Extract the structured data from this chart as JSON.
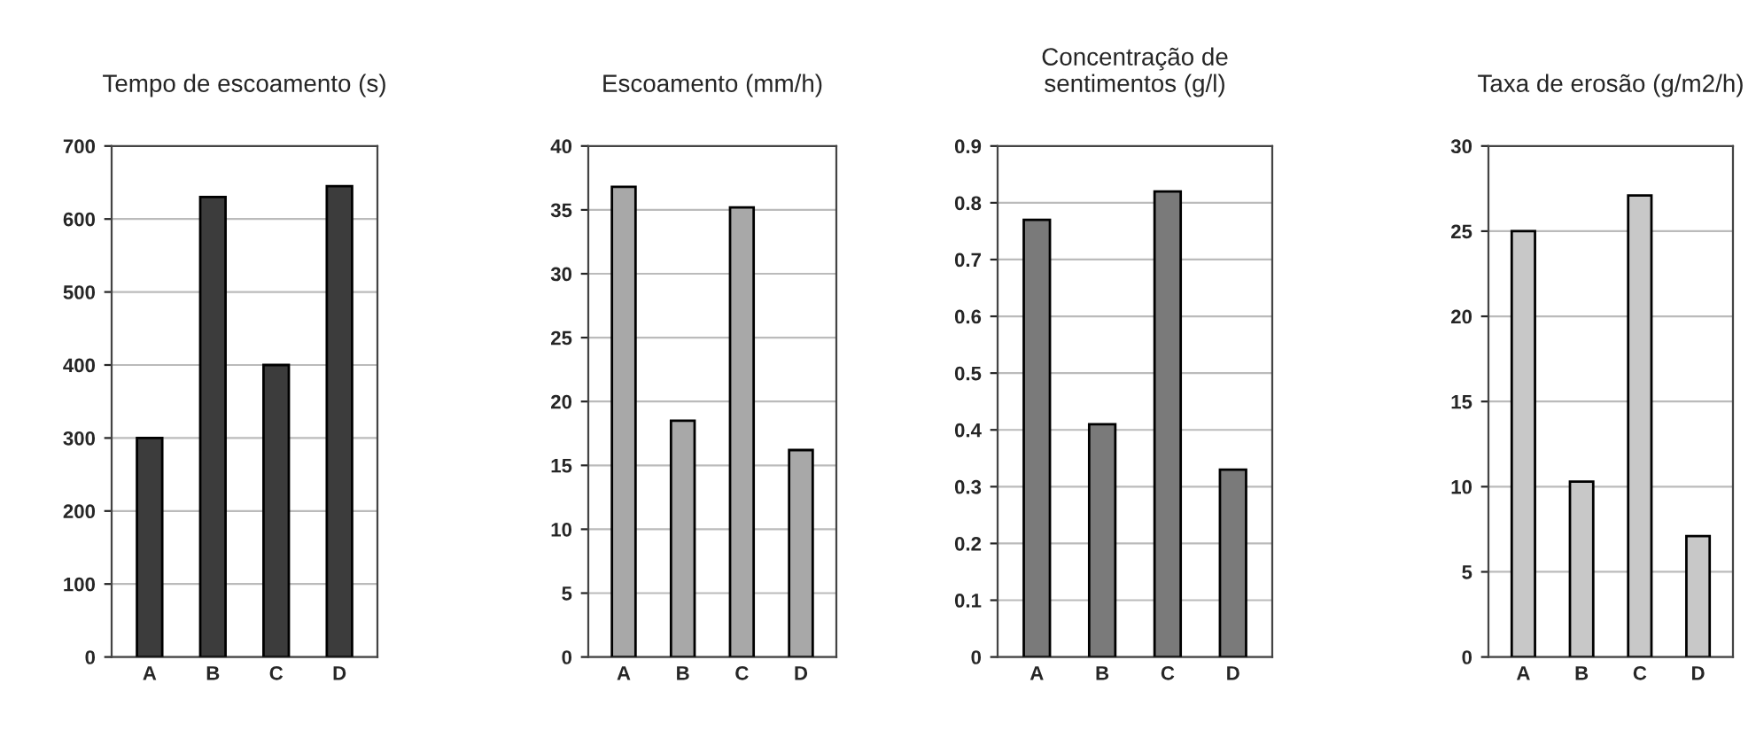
{
  "chart_data": [
    {
      "type": "bar",
      "title": "Tempo de escoamento (s)",
      "categories": [
        "A",
        "B",
        "C",
        "D"
      ],
      "values": [
        300,
        630,
        400,
        645
      ],
      "color": "#3c3c3c",
      "ylim": [
        0,
        700
      ],
      "yticks": [
        0,
        100,
        200,
        300,
        400,
        500,
        600,
        700
      ],
      "grid": "y"
    },
    {
      "type": "bar",
      "title": "Escoamento (mm/h)",
      "categories": [
        "A",
        "B",
        "C",
        "D"
      ],
      "values": [
        36.8,
        18.5,
        35.2,
        16.2
      ],
      "color": "#a8a8a8",
      "ylim": [
        0,
        40
      ],
      "yticks": [
        0,
        5,
        10,
        15,
        20,
        25,
        30,
        35,
        40
      ],
      "grid": "y"
    },
    {
      "type": "bar",
      "title": "Concentração de\nsentimentos (g/l)",
      "categories": [
        "A",
        "B",
        "C",
        "D"
      ],
      "values": [
        0.77,
        0.41,
        0.82,
        0.33
      ],
      "color": "#7a7a7a",
      "ylim": [
        0,
        0.9
      ],
      "yticks": [
        0,
        0.1,
        0.2,
        0.3,
        0.4,
        0.5,
        0.6,
        0.7,
        0.8,
        0.9
      ],
      "grid": "y"
    },
    {
      "type": "bar",
      "title": "Taxa de erosão (g/m2/h)",
      "categories": [
        "A",
        "B",
        "C",
        "D"
      ],
      "values": [
        25,
        10.3,
        27.1,
        7.1
      ],
      "color": "#c8c8c8",
      "ylim": [
        0,
        30
      ],
      "yticks": [
        0,
        5,
        10,
        15,
        20,
        25,
        30
      ],
      "grid": "y"
    }
  ]
}
